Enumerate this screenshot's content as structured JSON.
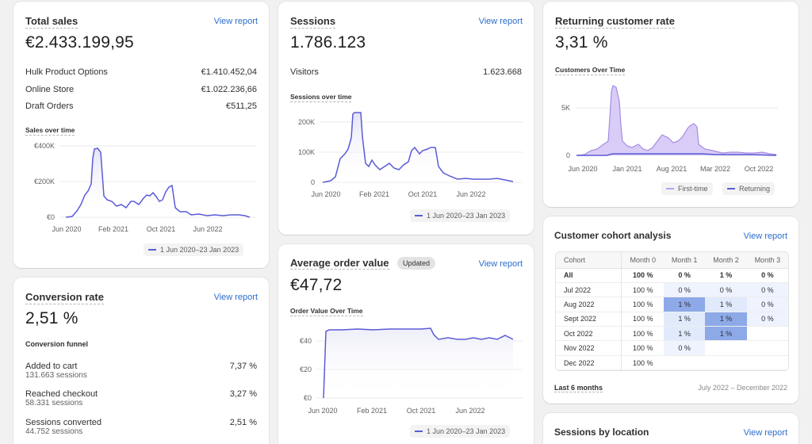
{
  "total_sales": {
    "title": "Total sales",
    "view_report": "View report",
    "value": "€2.433.199,95",
    "rows": [
      {
        "label": "Hulk Product Options",
        "value": "€1.410.452,04"
      },
      {
        "label": "Online Store",
        "value": "€1.022.236,66"
      },
      {
        "label": "Draft Orders",
        "value": "€511,25"
      }
    ],
    "chart_label": "Sales over time",
    "y_ticks": [
      "€400K",
      "€200K",
      "€0"
    ],
    "x_ticks": [
      "Jun 2020",
      "Feb 2021",
      "Oct 2021",
      "Jun 2022"
    ],
    "legend": "1 Jun 2020–23 Jan 2023"
  },
  "sessions": {
    "title": "Sessions",
    "view_report": "View report",
    "value": "1.786.123",
    "rows": [
      {
        "label": "Visitors",
        "value": "1.623.668"
      }
    ],
    "chart_label": "Sessions over time",
    "y_ticks": [
      "200K",
      "100K",
      "0"
    ],
    "x_ticks": [
      "Jun 2020",
      "Feb 2021",
      "Oct 2021",
      "Jun 2022"
    ],
    "legend": "1 Jun 2020–23 Jan 2023"
  },
  "returning": {
    "title": "Returning customer rate",
    "value": "3,31 %",
    "chart_label": "Customers Over Time",
    "y_ticks": [
      "5K",
      "0"
    ],
    "x_ticks": [
      "Jun 2020",
      "Jan 2021",
      "Aug 2021",
      "Mar 2022",
      "Oct 2022"
    ],
    "legend": [
      "First-time",
      "Returning"
    ]
  },
  "conversion": {
    "title": "Conversion rate",
    "view_report": "View report",
    "value": "2,51 %",
    "funnel_label": "Conversion funnel",
    "steps": [
      {
        "label": "Added to cart",
        "sessions": "131.663 sessions",
        "value": "7,37 %"
      },
      {
        "label": "Reached checkout",
        "sessions": "58.331 sessions",
        "value": "3,27 %"
      },
      {
        "label": "Sessions converted",
        "sessions": "44.752 sessions",
        "value": "2,51 %"
      }
    ]
  },
  "aov": {
    "title": "Average order value",
    "badge": "Updated",
    "view_report": "View report",
    "value": "€47,72",
    "chart_label": "Order Value Over Time",
    "y_ticks": [
      "€40",
      "€20",
      "€0"
    ],
    "x_ticks": [
      "Jun 2020",
      "Feb 2021",
      "Oct 2021",
      "Jun 2022"
    ],
    "legend": "1 Jun 2020–23 Jan 2023"
  },
  "cohort": {
    "title": "Customer cohort analysis",
    "view_report": "View report",
    "headers": [
      "Cohort",
      "Month 0",
      "Month 1",
      "Month 2",
      "Month 3"
    ],
    "rows": [
      [
        "All",
        "100 %",
        "0 %",
        "1 %",
        "0 %"
      ],
      [
        "Jul 2022",
        "100 %",
        "0 %",
        "0 %",
        "0 %"
      ],
      [
        "Aug 2022",
        "100 %",
        "1 %",
        "1 %",
        "0 %"
      ],
      [
        "Sept 2022",
        "100 %",
        "1 %",
        "1 %",
        "0 %"
      ],
      [
        "Oct 2022",
        "100 %",
        "1 %",
        "1 %",
        ""
      ],
      [
        "Nov 2022",
        "100 %",
        "0 %",
        "",
        ""
      ],
      [
        "Dec 2022",
        "100 %",
        "",
        "",
        ""
      ]
    ],
    "footer_label": "Last 6 months",
    "footer_range": "July 2022 – December 2022"
  },
  "location": {
    "title": "Sessions by location",
    "view_report": "View report"
  },
  "colors": {
    "line": "#5b5bd6",
    "link": "#2c6ecb",
    "fill_area": "#d9ccf7"
  }
}
